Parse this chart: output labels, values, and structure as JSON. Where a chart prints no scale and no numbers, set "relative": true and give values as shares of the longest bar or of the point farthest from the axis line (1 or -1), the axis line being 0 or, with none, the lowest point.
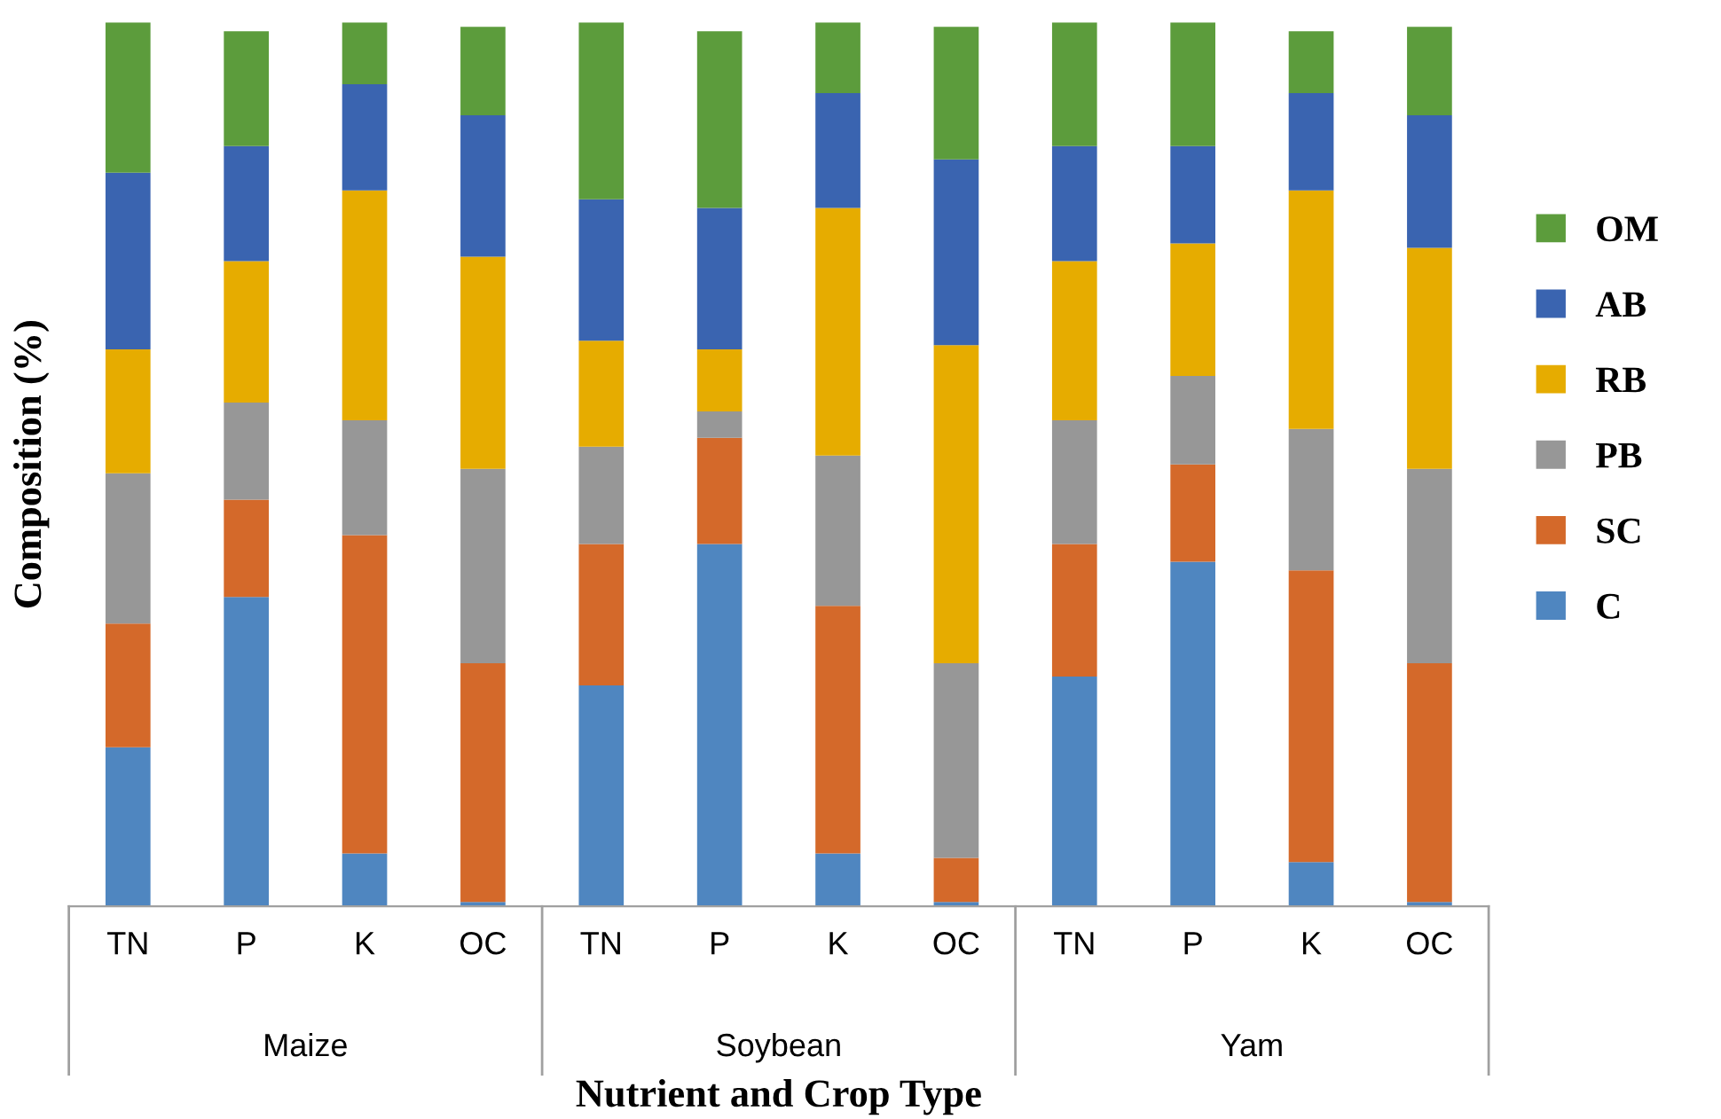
{
  "chart_data": {
    "type": "bar",
    "stacked": true,
    "relative": true,
    "xlabel": "Nutrient and Crop Type",
    "ylabel": "Composition (%)",
    "categories": [
      "TN",
      "P",
      "K",
      "OC",
      "TN",
      "P",
      "K",
      "OC",
      "TN",
      "P",
      "K",
      "OC"
    ],
    "annotations": [
      "Maize",
      "Soybean",
      "Yam"
    ],
    "series": [
      {
        "name": "C",
        "color": "#4f86c0",
        "values": [
          0.18,
          0.35,
          0.06,
          0.005,
          0.25,
          0.41,
          0.06,
          0.005,
          0.26,
          0.39,
          0.05,
          0.005
        ]
      },
      {
        "name": "SC",
        "color": "#d4692a",
        "values": [
          0.14,
          0.11,
          0.36,
          0.27,
          0.16,
          0.12,
          0.28,
          0.05,
          0.15,
          0.11,
          0.33,
          0.27
        ]
      },
      {
        "name": "PB",
        "color": "#979797",
        "values": [
          0.17,
          0.11,
          0.13,
          0.22,
          0.11,
          0.03,
          0.17,
          0.22,
          0.14,
          0.1,
          0.16,
          0.22
        ]
      },
      {
        "name": "RB",
        "color": "#e6ac00",
        "values": [
          0.14,
          0.16,
          0.26,
          0.24,
          0.12,
          0.07,
          0.28,
          0.36,
          0.18,
          0.15,
          0.27,
          0.25
        ]
      },
      {
        "name": "AB",
        "color": "#3a64b0",
        "values": [
          0.2,
          0.13,
          0.12,
          0.16,
          0.16,
          0.16,
          0.13,
          0.21,
          0.13,
          0.11,
          0.11,
          0.15
        ]
      },
      {
        "name": "OM",
        "color": "#5c9c3c",
        "values": [
          0.17,
          0.13,
          0.07,
          0.1,
          0.2,
          0.2,
          0.08,
          0.15,
          0.14,
          0.14,
          0.07,
          0.1
        ]
      }
    ],
    "legend": "right",
    "grid": false
  }
}
